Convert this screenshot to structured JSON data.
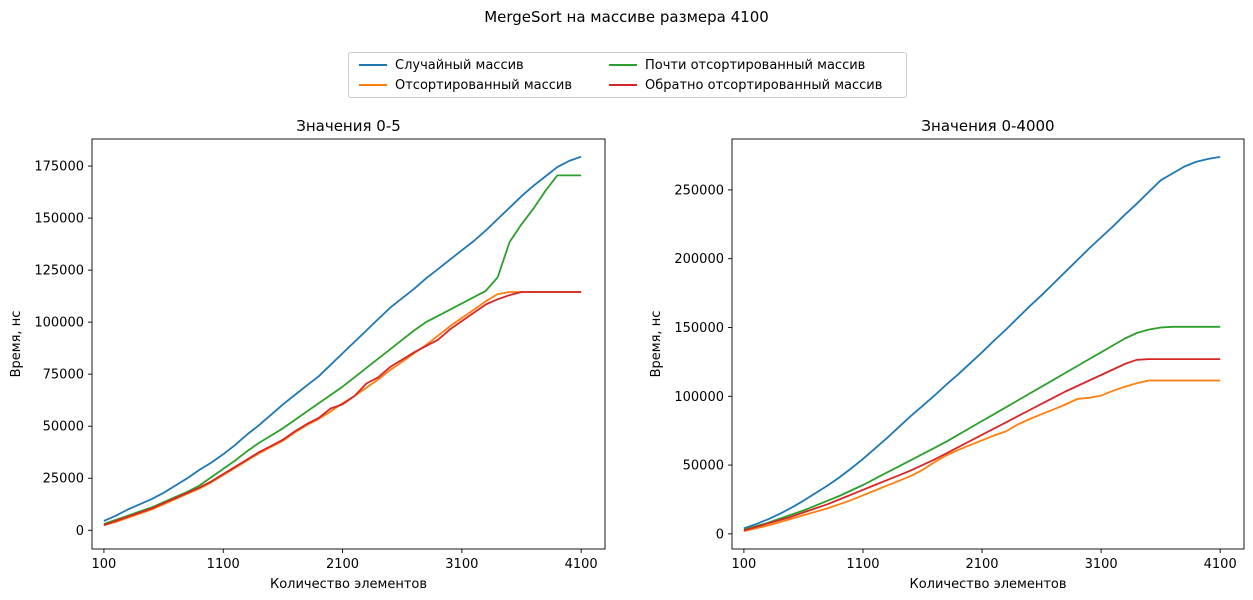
{
  "figure_title": "MergeSort на массиве размера 4100",
  "legend": {
    "placement": "top-center",
    "entries": [
      {
        "name": "Случайный массив",
        "color": "#1f77b4"
      },
      {
        "name": "Почти отсортированный массив",
        "color": "#2ca02c"
      },
      {
        "name": "Отсортированный массив",
        "color": "#ff7f0e"
      },
      {
        "name": "Обратно отсортированный массив",
        "color": "#d62728"
      }
    ]
  },
  "chart_data": [
    {
      "type": "line",
      "title": "Значения 0-5",
      "xlabel": "Количество элементов",
      "ylabel": "Время, нс",
      "xlim": [
        0,
        4300
      ],
      "ylim": [
        -9000,
        188000
      ],
      "xticks": [
        100,
        1100,
        2100,
        3100,
        4100
      ],
      "xtick_labels": [
        "100",
        "1100",
        "2100",
        "3100",
        "4100"
      ],
      "yticks": [
        0,
        25000,
        50000,
        75000,
        100000,
        125000,
        150000,
        175000
      ],
      "ytick_labels": [
        "0",
        "25000",
        "50000",
        "75000",
        "100000",
        "125000",
        "150000",
        "175000"
      ],
      "x": [
        100,
        200,
        300,
        400,
        500,
        600,
        700,
        800,
        900,
        1000,
        1100,
        1200,
        1300,
        1400,
        1500,
        1600,
        1700,
        1800,
        1900,
        2000,
        2100,
        2200,
        2300,
        2400,
        2500,
        2600,
        2700,
        2800,
        2900,
        3000,
        3100,
        3200,
        3300,
        3400,
        3500,
        3600,
        3700,
        3800,
        3900,
        4000,
        4100
      ],
      "series": [
        {
          "name": "Случайный массив",
          "color": "#1f77b4",
          "values": [
            4500,
            7000,
            10000,
            12500,
            15000,
            18000,
            21500,
            25000,
            29000,
            32500,
            36500,
            41000,
            46000,
            50500,
            55500,
            60500,
            65000,
            69500,
            74000,
            79500,
            85000,
            90500,
            96000,
            101500,
            107000,
            111500,
            116000,
            121000,
            125500,
            130000,
            134500,
            139000,
            144000,
            149500,
            155000,
            160500,
            165500,
            170000,
            174500,
            177500,
            179500
          ]
        },
        {
          "name": "Почти отсортированный массив",
          "color": "#2ca02c",
          "values": [
            3000,
            5000,
            7000,
            9000,
            11000,
            13500,
            16000,
            18500,
            21500,
            25500,
            29500,
            33500,
            38000,
            42000,
            45500,
            49000,
            53000,
            57000,
            61000,
            65000,
            69000,
            73500,
            78000,
            82500,
            87000,
            91500,
            96000,
            100000,
            103000,
            106000,
            109000,
            112000,
            115000,
            121500,
            138500,
            147000,
            154500,
            163000,
            170500,
            170500,
            170500
          ]
        },
        {
          "name": "Отсортированный массив",
          "color": "#ff7f0e",
          "values": [
            2500,
            4000,
            6000,
            8000,
            10000,
            12500,
            15000,
            17500,
            20000,
            23000,
            26500,
            30000,
            33500,
            37000,
            40000,
            43000,
            47000,
            50500,
            53500,
            57000,
            61000,
            64500,
            68500,
            72500,
            77000,
            81000,
            85000,
            89000,
            93500,
            98000,
            102000,
            106000,
            110000,
            113500,
            114500,
            114500,
            114500,
            114500,
            114500,
            114500,
            114500
          ]
        },
        {
          "name": "Обратно отсортированный массив",
          "color": "#d62728",
          "values": [
            2500,
            4500,
            6500,
            8500,
            10500,
            13000,
            15500,
            18000,
            20500,
            23500,
            27000,
            30500,
            34000,
            37500,
            40500,
            43500,
            47500,
            51000,
            54000,
            58500,
            60500,
            64500,
            70500,
            73500,
            78500,
            82000,
            85500,
            88500,
            91500,
            96500,
            100500,
            104500,
            108500,
            111000,
            113000,
            114500,
            114500,
            114500,
            114500,
            114500,
            114500
          ]
        }
      ]
    },
    {
      "type": "line",
      "title": "Значения 0-4000",
      "xlabel": "Количество элементов",
      "ylabel": "Время, нс",
      "xlim": [
        0,
        4300
      ],
      "ylim": [
        -11000,
        287000
      ],
      "xticks": [
        100,
        1100,
        2100,
        3100,
        4100
      ],
      "xtick_labels": [
        "100",
        "1100",
        "2100",
        "3100",
        "4100"
      ],
      "yticks": [
        0,
        50000,
        100000,
        150000,
        200000,
        250000
      ],
      "ytick_labels": [
        "0",
        "50000",
        "100000",
        "150000",
        "200000",
        "250000"
      ],
      "x": [
        100,
        200,
        300,
        400,
        500,
        600,
        700,
        800,
        900,
        1000,
        1100,
        1200,
        1300,
        1400,
        1500,
        1600,
        1700,
        1800,
        1900,
        2000,
        2100,
        2200,
        2300,
        2400,
        2500,
        2600,
        2700,
        2800,
        2900,
        3000,
        3100,
        3200,
        3300,
        3400,
        3500,
        3600,
        3700,
        3800,
        3900,
        4000,
        4100
      ],
      "series": [
        {
          "name": "Случайный массив",
          "color": "#1f77b4",
          "values": [
            4000,
            7000,
            10500,
            14500,
            19000,
            24000,
            29500,
            35000,
            41000,
            47500,
            54500,
            62000,
            69500,
            77500,
            85500,
            93000,
            100500,
            108500,
            116000,
            124000,
            132000,
            140500,
            148500,
            157000,
            165500,
            173500,
            182000,
            190500,
            199000,
            207500,
            215500,
            223500,
            232000,
            240000,
            248500,
            257000,
            262000,
            267000,
            270500,
            272500,
            274000
          ]
        },
        {
          "name": "Почти отсортированный массив",
          "color": "#2ca02c",
          "values": [
            3000,
            5500,
            8000,
            11000,
            14000,
            17000,
            20500,
            24000,
            27500,
            31500,
            35500,
            40000,
            44500,
            49000,
            53500,
            58000,
            62500,
            67000,
            72000,
            77000,
            82000,
            87000,
            92000,
            97000,
            102000,
            107000,
            112000,
            117000,
            122000,
            127000,
            132000,
            137000,
            142000,
            146000,
            148500,
            150000,
            150500,
            150500,
            150500,
            150500,
            150500
          ]
        },
        {
          "name": "Отсортированный массив",
          "color": "#ff7f0e",
          "values": [
            2000,
            4000,
            6000,
            8500,
            11000,
            13500,
            16000,
            18500,
            21500,
            24500,
            28000,
            31500,
            35000,
            38500,
            42000,
            46500,
            52000,
            57000,
            61000,
            64500,
            68000,
            71500,
            74500,
            79500,
            83500,
            87000,
            90500,
            94000,
            98000,
            99000,
            100500,
            104000,
            107000,
            109500,
            111500,
            111500,
            111500,
            111500,
            111500,
            111500,
            111500
          ]
        },
        {
          "name": "Обратно отсортированный массив",
          "color": "#d62728",
          "values": [
            2500,
            5000,
            7500,
            10000,
            12500,
            15500,
            18500,
            21500,
            25000,
            28500,
            32000,
            35500,
            39000,
            42500,
            46000,
            50000,
            54000,
            58500,
            63000,
            67500,
            72000,
            76500,
            81000,
            85500,
            90000,
            94500,
            99000,
            103500,
            107500,
            111500,
            115500,
            119500,
            123500,
            126500,
            127000,
            127000,
            127000,
            127000,
            127000,
            127000,
            127000
          ]
        }
      ]
    }
  ]
}
